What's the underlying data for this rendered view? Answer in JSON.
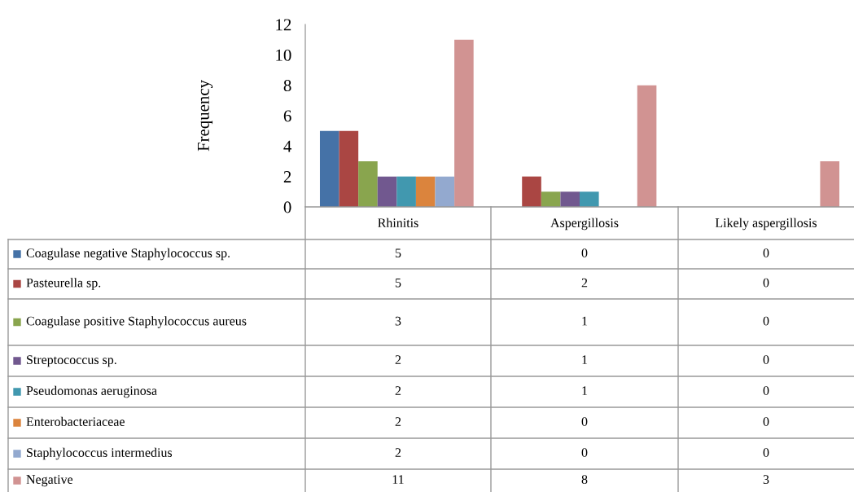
{
  "chart_data": {
    "type": "bar",
    "ylabel": "Frequency",
    "categories": [
      "Rhinitis",
      "Aspergillosis",
      "Likely aspergillosis"
    ],
    "series": [
      {
        "name": "Coagulase negative Staphylococcus sp.",
        "color": "#4572a7",
        "values": [
          5,
          0,
          0
        ]
      },
      {
        "name": "Pasteurella sp.",
        "color": "#aa4643",
        "values": [
          5,
          2,
          0
        ]
      },
      {
        "name": "Coagulase positive Staphylococcus aureus",
        "color": "#89a54e",
        "values": [
          3,
          1,
          0
        ]
      },
      {
        "name": "Streptococcus sp.",
        "color": "#71588f",
        "values": [
          2,
          1,
          0
        ]
      },
      {
        "name": "Pseudomonas aeruginosa",
        "color": "#4198af",
        "values": [
          2,
          1,
          0
        ]
      },
      {
        "name": "Enterobacteriaceae",
        "color": "#db843d",
        "values": [
          2,
          0,
          0
        ]
      },
      {
        "name": "Staphylococcus intermedius",
        "color": "#93a9cf",
        "values": [
          2,
          0,
          0
        ]
      },
      {
        "name": "Negative",
        "color": "#d19392",
        "values": [
          11,
          8,
          3
        ]
      }
    ],
    "ylim": [
      0,
      12
    ],
    "yticks": [
      0,
      2,
      4,
      6,
      8,
      10,
      12
    ],
    "grid": false,
    "legend": "bottom",
    "data_labels": true
  }
}
